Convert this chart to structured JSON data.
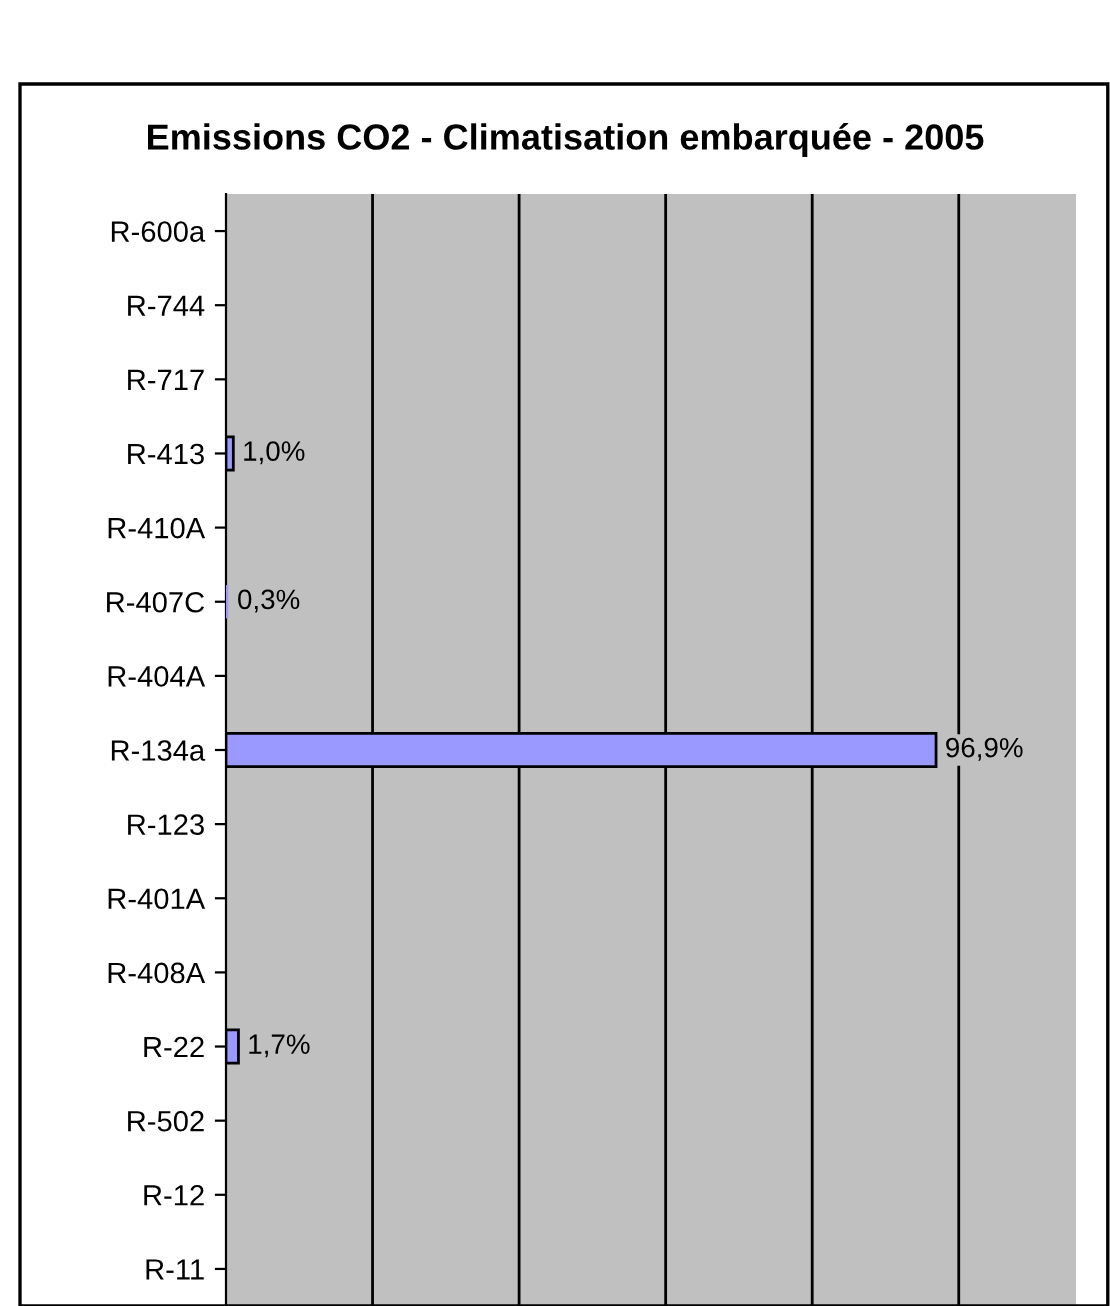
{
  "chart_data": {
    "type": "bar",
    "orientation": "horizontal",
    "title": "Emissions CO2 - Climatisation embarquée - 2005",
    "categories": [
      "R-600a",
      "R-744",
      "R-717",
      "R-413",
      "R-410A",
      "R-407C",
      "R-404A",
      "R-134a",
      "R-123",
      "R-401A",
      "R-408A",
      "R-22",
      "R-502",
      "R-12",
      "R-11"
    ],
    "values": [
      0,
      0,
      0,
      1.0,
      0,
      0.3,
      0,
      96.9,
      0,
      0,
      0,
      1.7,
      0,
      0,
      0
    ],
    "value_labels": [
      null,
      null,
      null,
      "1,0%",
      null,
      "0,3%",
      null,
      "96,9%",
      null,
      null,
      null,
      "1,7%",
      null,
      null,
      null
    ],
    "color": "#9999ff",
    "xlim": [
      0,
      116
    ],
    "xticks": [
      {
        "value": 20,
        "label": null
      },
      {
        "value": 40,
        "label": null
      },
      {
        "value": 60,
        "label": null
      },
      {
        "value": 80,
        "label": null
      },
      {
        "value": 100,
        "label": null
      }
    ],
    "grid": "x",
    "tick_labels": "y",
    "legend": false
  }
}
